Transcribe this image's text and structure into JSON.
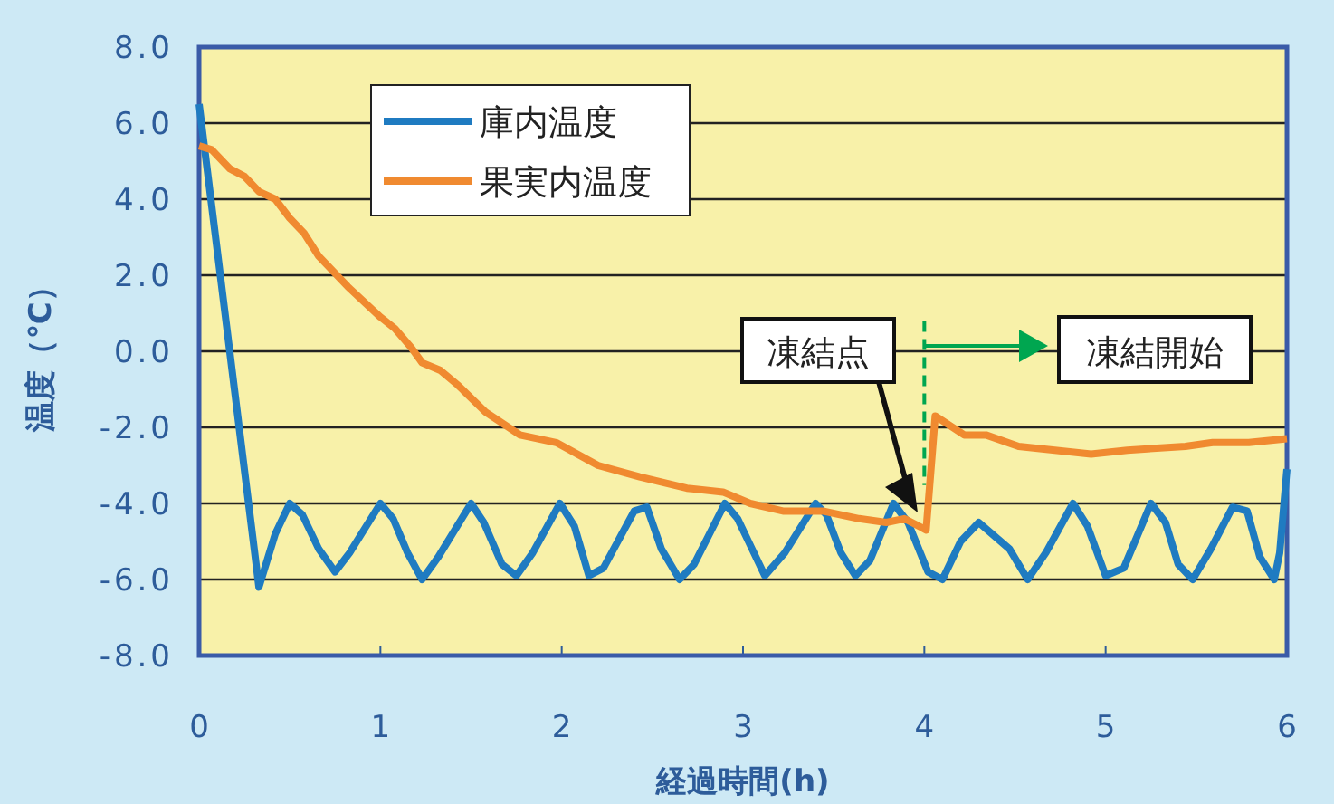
{
  "chart_data": {
    "type": "line",
    "xlabel": "経過時間(h)",
    "ylabel": "温度（℃）",
    "xlim": [
      0,
      6
    ],
    "xticks": [
      0,
      1,
      2,
      3,
      4,
      5,
      6
    ],
    "ylim": [
      -8,
      8
    ],
    "yticks": [
      {
        "value": -8,
        "label": "-8.0"
      },
      {
        "value": -6,
        "label": "-6.0"
      },
      {
        "value": -4,
        "label": "-4.0"
      },
      {
        "value": -2,
        "label": "-2.0"
      },
      {
        "value": 0,
        "label": "0.0"
      },
      {
        "value": 2,
        "label": "2.0"
      },
      {
        "value": 4,
        "label": "4.0"
      },
      {
        "value": 6,
        "label": "6.0"
      },
      {
        "value": 8,
        "label": "8.0"
      }
    ],
    "grid": "y",
    "legend": "top left",
    "marker": "none",
    "line_style": "solid",
    "series": [
      {
        "name": "庫内温度",
        "color": "#1f7bc1",
        "x": [
          0,
          0.33,
          0.42,
          0.5,
          0.57,
          0.66,
          0.75,
          0.83,
          1.0,
          1.07,
          1.15,
          1.23,
          1.32,
          1.5,
          1.57,
          1.67,
          1.75,
          1.84,
          1.99,
          2.07,
          2.15,
          2.23,
          2.4,
          2.47,
          2.55,
          2.65,
          2.73,
          2.9,
          2.97,
          3.05,
          3.12,
          3.23,
          3.4,
          3.46,
          3.54,
          3.62,
          3.7,
          3.83,
          3.91,
          4.02,
          4.1,
          4.2,
          4.3,
          4.47,
          4.57,
          4.67,
          4.82,
          4.9,
          5.0,
          5.1,
          5.25,
          5.33,
          5.4,
          5.48,
          5.58,
          5.7,
          5.78,
          5.85,
          5.93,
          5.96,
          6.0
        ],
        "values": [
          6.5,
          -6.2,
          -4.8,
          -4.0,
          -4.3,
          -5.2,
          -5.8,
          -5.3,
          -4.0,
          -4.4,
          -5.3,
          -6.0,
          -5.4,
          -4.0,
          -4.5,
          -5.6,
          -5.9,
          -5.3,
          -4.0,
          -4.6,
          -5.9,
          -5.7,
          -4.2,
          -4.1,
          -5.2,
          -6.0,
          -5.6,
          -4.0,
          -4.4,
          -5.2,
          -5.9,
          -5.3,
          -4.0,
          -4.3,
          -5.3,
          -5.9,
          -5.5,
          -4.0,
          -4.5,
          -5.8,
          -6.0,
          -5.0,
          -4.5,
          -5.2,
          -6.0,
          -5.3,
          -4.0,
          -4.6,
          -5.9,
          -5.7,
          -4.0,
          -4.5,
          -5.6,
          -6.0,
          -5.2,
          -4.1,
          -4.2,
          -5.4,
          -6.0,
          -5.3,
          -3.1
        ]
      },
      {
        "name": "果実内温度",
        "color": "#f08a30",
        "x": [
          0,
          0.07,
          0.17,
          0.25,
          0.33,
          0.42,
          0.5,
          0.58,
          0.66,
          0.82,
          1.0,
          1.08,
          1.17,
          1.23,
          1.33,
          1.43,
          1.58,
          1.77,
          1.97,
          2.2,
          2.43,
          2.69,
          2.89,
          3.04,
          3.22,
          3.44,
          3.64,
          3.79,
          3.89,
          4.01,
          4.06,
          4.22,
          4.34,
          4.52,
          4.72,
          4.92,
          5.12,
          5.44,
          5.59,
          5.79,
          6.0
        ],
        "values": [
          5.4,
          5.3,
          4.8,
          4.6,
          4.2,
          4.0,
          3.5,
          3.1,
          2.5,
          1.7,
          0.9,
          0.6,
          0.1,
          -0.3,
          -0.5,
          -0.9,
          -1.6,
          -2.2,
          -2.4,
          -3.0,
          -3.3,
          -3.6,
          -3.7,
          -4.0,
          -4.2,
          -4.2,
          -4.4,
          -4.5,
          -4.4,
          -4.7,
          -1.7,
          -2.2,
          -2.2,
          -2.5,
          -2.6,
          -2.7,
          -2.6,
          -2.5,
          -2.4,
          -2.4,
          -2.3
        ]
      }
    ],
    "ref_lines": [
      {
        "axis": "x",
        "value": 4,
        "color": "#00a650",
        "line_style": "dashed"
      }
    ],
    "annotations": [
      "凍結点",
      "凍結開始"
    ]
  }
}
